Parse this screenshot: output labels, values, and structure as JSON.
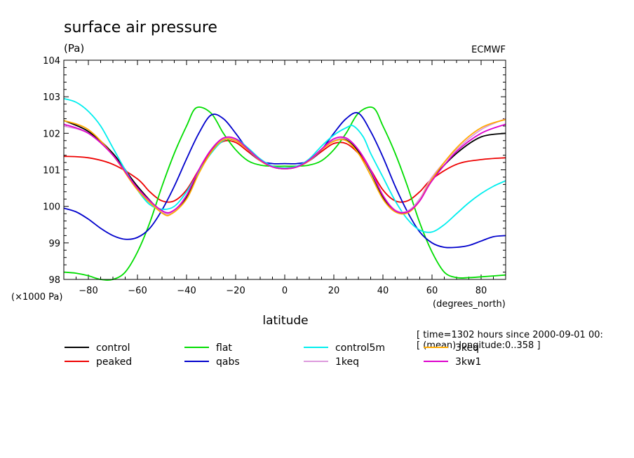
{
  "chart_data": {
    "type": "line",
    "title": "surface air pressure",
    "units": "(Pa)",
    "source": "ECMWF",
    "xlabel": "latitude",
    "xunit": "(degrees_north)",
    "yscale_label": "(×1000 Pa)",
    "xlim": [
      -90,
      90
    ],
    "ylim": [
      98,
      104
    ],
    "xticks": [
      -80,
      -60,
      -40,
      -20,
      0,
      20,
      40,
      60,
      80
    ],
    "yticks": [
      98,
      99,
      100,
      101,
      102,
      103,
      104
    ],
    "info_lines": [
      "[ time=1302 hours since 2000-09-01 00:",
      "[ (mean) longitude:0..358 ]"
    ],
    "grid": false,
    "series": [
      {
        "name": "control",
        "color": "#000000",
        "points": [
          [
            -90,
            102.35
          ],
          [
            -80,
            102.05
          ],
          [
            -70,
            101.45
          ],
          [
            -60,
            100.55
          ],
          [
            -50,
            99.85
          ],
          [
            -45,
            99.88
          ],
          [
            -40,
            100.25
          ],
          [
            -35,
            100.95
          ],
          [
            -30,
            101.5
          ],
          [
            -25,
            101.82
          ],
          [
            -20,
            101.8
          ],
          [
            -15,
            101.55
          ],
          [
            -10,
            101.25
          ],
          [
            -5,
            101.08
          ],
          [
            0,
            101.03
          ],
          [
            5,
            101.08
          ],
          [
            10,
            101.25
          ],
          [
            15,
            101.55
          ],
          [
            20,
            101.8
          ],
          [
            25,
            101.82
          ],
          [
            30,
            101.5
          ],
          [
            35,
            100.95
          ],
          [
            40,
            100.25
          ],
          [
            45,
            99.88
          ],
          [
            50,
            99.85
          ],
          [
            55,
            100.2
          ],
          [
            60,
            100.75
          ],
          [
            70,
            101.45
          ],
          [
            80,
            101.9
          ],
          [
            90,
            102.0
          ]
        ]
      },
      {
        "name": "peaked",
        "color": "#ee0000",
        "points": [
          [
            -90,
            101.37
          ],
          [
            -80,
            101.33
          ],
          [
            -70,
            101.15
          ],
          [
            -60,
            100.75
          ],
          [
            -55,
            100.4
          ],
          [
            -50,
            100.15
          ],
          [
            -45,
            100.15
          ],
          [
            -40,
            100.45
          ],
          [
            -35,
            101.0
          ],
          [
            -30,
            101.5
          ],
          [
            -25,
            101.78
          ],
          [
            -20,
            101.75
          ],
          [
            -15,
            101.5
          ],
          [
            -10,
            101.25
          ],
          [
            -5,
            101.1
          ],
          [
            0,
            101.05
          ],
          [
            5,
            101.1
          ],
          [
            10,
            101.25
          ],
          [
            15,
            101.5
          ],
          [
            20,
            101.72
          ],
          [
            25,
            101.72
          ],
          [
            30,
            101.45
          ],
          [
            35,
            101.0
          ],
          [
            40,
            100.45
          ],
          [
            45,
            100.15
          ],
          [
            50,
            100.15
          ],
          [
            55,
            100.4
          ],
          [
            60,
            100.75
          ],
          [
            70,
            101.15
          ],
          [
            80,
            101.28
          ],
          [
            90,
            101.33
          ]
        ]
      },
      {
        "name": "flat",
        "color": "#00dd00",
        "points": [
          [
            -90,
            98.2
          ],
          [
            -85,
            98.17
          ],
          [
            -80,
            98.1
          ],
          [
            -75,
            98.0
          ],
          [
            -70,
            98.0
          ],
          [
            -65,
            98.2
          ],
          [
            -60,
            98.75
          ],
          [
            -55,
            99.55
          ],
          [
            -50,
            100.55
          ],
          [
            -45,
            101.45
          ],
          [
            -40,
            102.2
          ],
          [
            -36,
            102.7
          ],
          [
            -30,
            102.55
          ],
          [
            -25,
            102.0
          ],
          [
            -20,
            101.55
          ],
          [
            -15,
            101.25
          ],
          [
            -10,
            101.13
          ],
          [
            -5,
            101.1
          ],
          [
            0,
            101.1
          ],
          [
            5,
            101.1
          ],
          [
            10,
            101.13
          ],
          [
            15,
            101.25
          ],
          [
            20,
            101.55
          ],
          [
            25,
            102.0
          ],
          [
            30,
            102.55
          ],
          [
            36,
            102.7
          ],
          [
            40,
            102.2
          ],
          [
            45,
            101.45
          ],
          [
            50,
            100.55
          ],
          [
            55,
            99.55
          ],
          [
            60,
            98.75
          ],
          [
            65,
            98.2
          ],
          [
            70,
            98.05
          ],
          [
            75,
            98.05
          ],
          [
            80,
            98.07
          ],
          [
            90,
            98.12
          ]
        ]
      },
      {
        "name": "qabs",
        "color": "#0000cc",
        "points": [
          [
            -90,
            99.95
          ],
          [
            -85,
            99.85
          ],
          [
            -80,
            99.65
          ],
          [
            -75,
            99.4
          ],
          [
            -70,
            99.2
          ],
          [
            -65,
            99.1
          ],
          [
            -60,
            99.15
          ],
          [
            -55,
            99.4
          ],
          [
            -50,
            99.9
          ],
          [
            -45,
            100.55
          ],
          [
            -40,
            101.3
          ],
          [
            -35,
            102.0
          ],
          [
            -30,
            102.5
          ],
          [
            -25,
            102.4
          ],
          [
            -20,
            102.0
          ],
          [
            -15,
            101.55
          ],
          [
            -10,
            101.25
          ],
          [
            -5,
            101.17
          ],
          [
            0,
            101.17
          ],
          [
            5,
            101.17
          ],
          [
            10,
            101.25
          ],
          [
            15,
            101.55
          ],
          [
            20,
            102.0
          ],
          [
            25,
            102.4
          ],
          [
            30,
            102.55
          ],
          [
            35,
            102.05
          ],
          [
            40,
            101.35
          ],
          [
            45,
            100.55
          ],
          [
            50,
            99.85
          ],
          [
            55,
            99.3
          ],
          [
            60,
            99.0
          ],
          [
            65,
            98.88
          ],
          [
            70,
            98.88
          ],
          [
            75,
            98.93
          ],
          [
            80,
            99.05
          ],
          [
            85,
            99.17
          ],
          [
            90,
            99.2
          ]
        ]
      },
      {
        "name": "control5m",
        "color": "#00eeee",
        "points": [
          [
            -90,
            102.95
          ],
          [
            -85,
            102.85
          ],
          [
            -80,
            102.6
          ],
          [
            -75,
            102.2
          ],
          [
            -70,
            101.6
          ],
          [
            -65,
            101.0
          ],
          [
            -60,
            100.45
          ],
          [
            -55,
            100.05
          ],
          [
            -50,
            99.92
          ],
          [
            -45,
            100.0
          ],
          [
            -40,
            100.4
          ],
          [
            -35,
            100.95
          ],
          [
            -30,
            101.45
          ],
          [
            -25,
            101.8
          ],
          [
            -20,
            101.85
          ],
          [
            -15,
            101.6
          ],
          [
            -10,
            101.3
          ],
          [
            -5,
            101.1
          ],
          [
            0,
            101.05
          ],
          [
            5,
            101.1
          ],
          [
            10,
            101.3
          ],
          [
            15,
            101.65
          ],
          [
            20,
            101.95
          ],
          [
            25,
            102.15
          ],
          [
            28,
            102.2
          ],
          [
            32,
            101.9
          ],
          [
            35,
            101.45
          ],
          [
            40,
            100.8
          ],
          [
            45,
            100.15
          ],
          [
            50,
            99.65
          ],
          [
            55,
            99.35
          ],
          [
            60,
            99.3
          ],
          [
            65,
            99.5
          ],
          [
            70,
            99.8
          ],
          [
            75,
            100.1
          ],
          [
            80,
            100.35
          ],
          [
            85,
            100.55
          ],
          [
            90,
            100.7
          ]
        ]
      },
      {
        "name": "1keq",
        "color": "#dd99dd",
        "points": [
          [
            -90,
            102.2
          ],
          [
            -80,
            102.0
          ],
          [
            -70,
            101.4
          ],
          [
            -60,
            100.5
          ],
          [
            -50,
            99.85
          ],
          [
            -45,
            99.88
          ],
          [
            -40,
            100.3
          ],
          [
            -35,
            101.0
          ],
          [
            -30,
            101.55
          ],
          [
            -25,
            101.85
          ],
          [
            -20,
            101.82
          ],
          [
            -15,
            101.55
          ],
          [
            -10,
            101.25
          ],
          [
            -5,
            101.08
          ],
          [
            0,
            101.03
          ],
          [
            5,
            101.08
          ],
          [
            10,
            101.25
          ],
          [
            15,
            101.55
          ],
          [
            20,
            101.8
          ],
          [
            25,
            101.85
          ],
          [
            30,
            101.55
          ],
          [
            35,
            100.98
          ],
          [
            40,
            100.3
          ],
          [
            45,
            99.9
          ],
          [
            50,
            99.87
          ],
          [
            55,
            100.2
          ],
          [
            60,
            100.8
          ],
          [
            70,
            101.55
          ],
          [
            80,
            102.1
          ],
          [
            90,
            102.4
          ]
        ]
      },
      {
        "name": "3keq",
        "color": "#ffaa00",
        "points": [
          [
            -90,
            102.35
          ],
          [
            -80,
            102.1
          ],
          [
            -70,
            101.4
          ],
          [
            -60,
            100.45
          ],
          [
            -50,
            99.82
          ],
          [
            -46,
            99.8
          ],
          [
            -40,
            100.2
          ],
          [
            -35,
            100.9
          ],
          [
            -30,
            101.48
          ],
          [
            -25,
            101.82
          ],
          [
            -20,
            101.8
          ],
          [
            -15,
            101.55
          ],
          [
            -10,
            101.25
          ],
          [
            -5,
            101.08
          ],
          [
            0,
            101.03
          ],
          [
            5,
            101.08
          ],
          [
            10,
            101.25
          ],
          [
            15,
            101.55
          ],
          [
            20,
            101.78
          ],
          [
            25,
            101.8
          ],
          [
            30,
            101.45
          ],
          [
            35,
            100.85
          ],
          [
            40,
            100.2
          ],
          [
            45,
            99.85
          ],
          [
            50,
            99.82
          ],
          [
            55,
            100.15
          ],
          [
            60,
            100.75
          ],
          [
            70,
            101.6
          ],
          [
            80,
            102.15
          ],
          [
            90,
            102.38
          ]
        ]
      },
      {
        "name": "3kw1",
        "color": "#dd00cc",
        "points": [
          [
            -90,
            102.25
          ],
          [
            -80,
            102.0
          ],
          [
            -70,
            101.4
          ],
          [
            -60,
            100.5
          ],
          [
            -50,
            99.88
          ],
          [
            -45,
            99.9
          ],
          [
            -40,
            100.3
          ],
          [
            -35,
            101.0
          ],
          [
            -30,
            101.55
          ],
          [
            -25,
            101.87
          ],
          [
            -20,
            101.85
          ],
          [
            -15,
            101.57
          ],
          [
            -10,
            101.27
          ],
          [
            -5,
            101.08
          ],
          [
            0,
            101.03
          ],
          [
            5,
            101.08
          ],
          [
            10,
            101.27
          ],
          [
            15,
            101.57
          ],
          [
            20,
            101.85
          ],
          [
            25,
            101.87
          ],
          [
            30,
            101.55
          ],
          [
            35,
            101.0
          ],
          [
            40,
            100.3
          ],
          [
            45,
            99.88
          ],
          [
            50,
            99.85
          ],
          [
            55,
            100.15
          ],
          [
            60,
            100.7
          ],
          [
            70,
            101.5
          ],
          [
            80,
            102.0
          ],
          [
            90,
            102.25
          ]
        ]
      }
    ]
  }
}
